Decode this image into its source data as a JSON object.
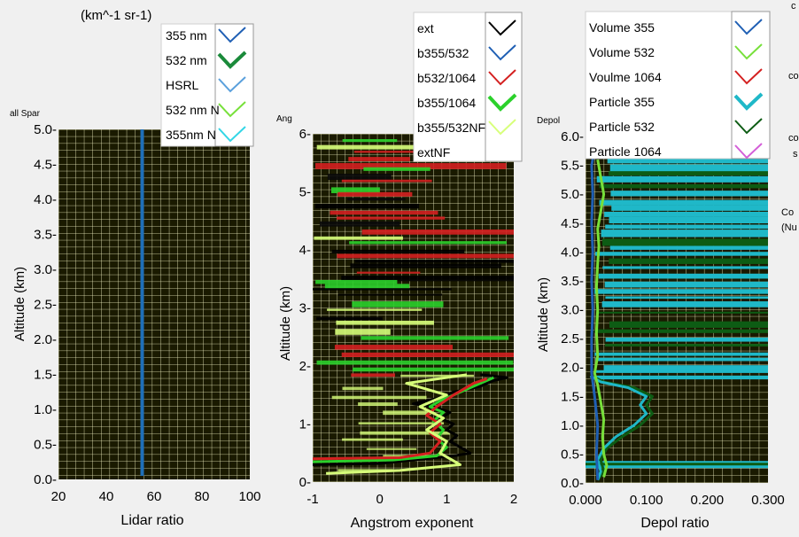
{
  "header": {
    "units_label": "(km^-1 sr-1)",
    "edge_label_1": "c",
    "edge_label_2": "co",
    "edge_label_3": "co",
    "edge_label_4": "s",
    "edge_label_5": "Co",
    "edge_label_6": "(Nu"
  },
  "colors": {
    "plot_bg": "#1a1a00",
    "grid": "#f5f5c8",
    "panel_bg": "#f0f0f0"
  },
  "chart_data": [
    {
      "type": "line",
      "corner_label": "all Spar",
      "xlabel": "Lidar ratio",
      "ylabel": "Altitude  (km)",
      "xlim": [
        20,
        100
      ],
      "ylim": [
        0,
        5
      ],
      "xticks": [
        "20",
        "40",
        "60",
        "80",
        "100"
      ],
      "yticks": [
        "0.0-",
        "0.5-",
        "1.0-",
        "1.5-",
        "2.0-",
        "2.5-",
        "3.0-",
        "3.5-",
        "4.0-",
        "4.5-",
        "5.0-"
      ],
      "legend": [
        "355 nm",
        "532 nm",
        "HSRL",
        "532 nm N",
        "355nm N"
      ],
      "legend_colors": [
        "#1f5fb4",
        "#1a8a3a",
        "#5aa0dc",
        "#77e03a",
        "#33d6e6"
      ],
      "series": [
        {
          "color": "#1f6fb8",
          "points": [
            [
              55,
              0.05
            ],
            [
              55,
              5.0
            ]
          ]
        }
      ]
    },
    {
      "type": "line",
      "corner_label": "Ang",
      "xlabel": "Angstrom exponent",
      "ylabel": "Altitude  (km)",
      "xlim": [
        -1,
        2
      ],
      "ylim": [
        0,
        6
      ],
      "xticks": [
        "-1",
        "0",
        "1",
        "2"
      ],
      "yticks": [
        "0-",
        "1-",
        "2-",
        "3-",
        "4-",
        "5-",
        "6-"
      ],
      "legend": [
        "ext",
        "b355/532",
        "b532/1064",
        "b355/1064",
        "b355/532NF",
        "extNF"
      ],
      "legend_colors": [
        "#000000",
        "#1f5fb4",
        "#d42020",
        "#2bd12b",
        "#d7ff7a",
        "#ffffff"
      ],
      "series": [
        {
          "color": "#000000",
          "points": [
            [
              -1.0,
              0.3
            ],
            [
              0.0,
              0.32
            ],
            [
              1.1,
              0.45
            ],
            [
              1.35,
              0.5
            ],
            [
              1.2,
              0.6
            ],
            [
              1.05,
              0.7
            ],
            [
              1.15,
              0.8
            ],
            [
              1.0,
              0.9
            ],
            [
              1.1,
              1.0
            ],
            [
              0.9,
              1.1
            ],
            [
              1.05,
              1.2
            ],
            [
              0.8,
              1.3
            ],
            [
              0.5,
              1.35
            ],
            [
              0.9,
              1.45
            ],
            [
              1.1,
              1.55
            ],
            [
              1.5,
              1.65
            ],
            [
              1.7,
              1.75
            ],
            [
              1.9,
              1.8
            ],
            [
              1.5,
              1.85
            ]
          ]
        },
        {
          "color": "#2bd12b",
          "points": [
            [
              -1.0,
              0.35
            ],
            [
              0.2,
              0.38
            ],
            [
              0.85,
              0.45
            ],
            [
              1.0,
              0.6
            ],
            [
              0.85,
              0.75
            ],
            [
              0.95,
              0.9
            ],
            [
              0.8,
              1.05
            ],
            [
              0.95,
              1.2
            ],
            [
              0.75,
              1.3
            ],
            [
              0.9,
              1.4
            ],
            [
              1.2,
              1.55
            ],
            [
              1.5,
              1.7
            ],
            [
              1.7,
              1.8
            ]
          ]
        },
        {
          "color": "#d42020",
          "points": [
            [
              -1.0,
              0.4
            ],
            [
              0.3,
              0.42
            ],
            [
              0.75,
              0.5
            ],
            [
              0.9,
              0.7
            ],
            [
              0.75,
              0.85
            ],
            [
              0.9,
              1.0
            ],
            [
              0.7,
              1.15
            ],
            [
              0.85,
              1.3
            ],
            [
              1.1,
              1.5
            ],
            [
              1.4,
              1.7
            ],
            [
              1.6,
              1.78
            ]
          ]
        },
        {
          "color": "#d7ff7a",
          "points": [
            [
              -0.8,
              0.15
            ],
            [
              0.3,
              0.2
            ],
            [
              1.2,
              0.3
            ],
            [
              0.9,
              0.5
            ],
            [
              1.0,
              0.7
            ],
            [
              0.7,
              0.9
            ],
            [
              0.95,
              1.1
            ],
            [
              0.6,
              1.3
            ],
            [
              1.0,
              1.5
            ],
            [
              0.4,
              1.7
            ],
            [
              1.3,
              1.85
            ]
          ]
        }
      ]
    },
    {
      "type": "line",
      "corner_label": "Depol",
      "xlabel": "Depol ratio",
      "ylabel": "Altitude  (km)",
      "xlim": [
        0,
        0.3
      ],
      "ylim": [
        0,
        6
      ],
      "xticks": [
        "0.000",
        "0.100",
        "0.200",
        "0.300"
      ],
      "yticks": [
        "0.0-",
        "0.5-",
        "1.0-",
        "1.5-",
        "2.0-",
        "2.5-",
        "3.0-",
        "3.5-",
        "4.0-",
        "4.5-",
        "5.0-",
        "5.5-",
        "6.0-"
      ],
      "legend": [
        "Volume 355",
        "Volume 532",
        "Voulme 1064",
        "Particle 355",
        "Particle 532",
        "Particle 1064"
      ],
      "legend_colors": [
        "#1f5fb4",
        "#77e03a",
        "#d42020",
        "#1fb8c8",
        "#0d5c14",
        "#d45fd8"
      ],
      "series": [
        {
          "color": "#0d5c14",
          "points": [
            [
              0.02,
              0.05
            ],
            [
              0.03,
              0.2
            ],
            [
              0.025,
              0.4
            ],
            [
              0.035,
              0.6
            ],
            [
              0.06,
              0.8
            ],
            [
              0.09,
              1.0
            ],
            [
              0.11,
              1.2
            ],
            [
              0.1,
              1.35
            ],
            [
              0.11,
              1.5
            ],
            [
              0.08,
              1.65
            ],
            [
              0.03,
              1.75
            ],
            [
              0.01,
              1.85
            ]
          ]
        },
        {
          "color": "#1fb8c8",
          "points": [
            [
              0.02,
              0.05
            ],
            [
              0.025,
              0.2
            ],
            [
              0.02,
              0.4
            ],
            [
              0.03,
              0.6
            ],
            [
              0.05,
              0.8
            ],
            [
              0.08,
              1.0
            ],
            [
              0.1,
              1.2
            ],
            [
              0.09,
              1.35
            ],
            [
              0.1,
              1.5
            ],
            [
              0.07,
              1.65
            ],
            [
              0.025,
              1.75
            ],
            [
              0.008,
              1.85
            ]
          ]
        },
        {
          "color": "#77e03a",
          "points": [
            [
              0.03,
              0.1
            ],
            [
              0.035,
              0.3
            ],
            [
              0.03,
              0.5
            ],
            [
              0.028,
              0.8
            ],
            [
              0.03,
              1.1
            ],
            [
              0.025,
              1.4
            ],
            [
              0.02,
              1.7
            ],
            [
              0.015,
              1.9
            ],
            [
              0.02,
              2.2
            ],
            [
              0.018,
              2.6
            ],
            [
              0.02,
              3.0
            ],
            [
              0.018,
              3.4
            ],
            [
              0.02,
              3.8
            ],
            [
              0.022,
              4.1
            ],
            [
              0.02,
              4.4
            ],
            [
              0.025,
              4.7
            ],
            [
              0.03,
              5.0
            ],
            [
              0.025,
              5.3
            ],
            [
              0.02,
              5.6
            ]
          ]
        },
        {
          "color": "#1f5fb4",
          "points": [
            [
              0.02,
              0.05
            ],
            [
              0.018,
              0.5
            ],
            [
              0.02,
              1.0
            ],
            [
              0.015,
              1.5
            ],
            [
              0.01,
              1.9
            ],
            [
              0.01,
              2.5
            ],
            [
              0.012,
              3.0
            ],
            [
              0.01,
              3.5
            ],
            [
              0.012,
              4.0
            ],
            [
              0.01,
              4.5
            ],
            [
              0.012,
              5.0
            ],
            [
              0.01,
              5.5
            ],
            [
              0.015,
              5.8
            ]
          ]
        }
      ]
    }
  ]
}
